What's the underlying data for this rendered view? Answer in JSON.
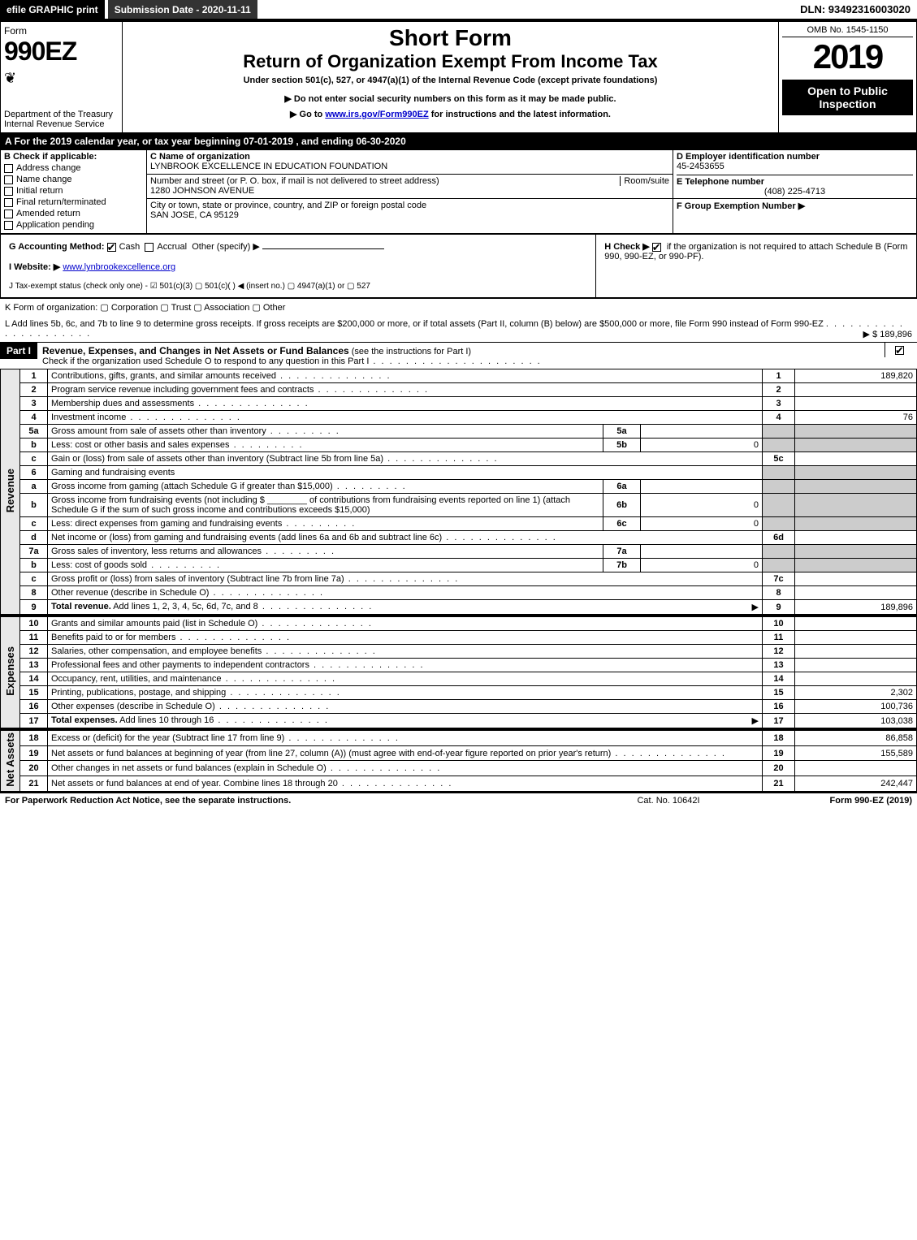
{
  "top": {
    "efile": "efile GRAPHIC print",
    "submission": "Submission Date - 2020-11-11",
    "dln": "DLN: 93492316003020"
  },
  "header": {
    "form_word": "Form",
    "form_num": "990EZ",
    "dept": "Department of the Treasury",
    "irs": "Internal Revenue Service",
    "omb": "OMB No. 1545-1150",
    "year": "2019",
    "open": "Open to Public Inspection",
    "title_short": "Short Form",
    "title_return": "Return of Organization Exempt From Income Tax",
    "subtitle": "Under section 501(c), 527, or 4947(a)(1) of the Internal Revenue Code (except private foundations)",
    "warn": "▶ Do not enter social security numbers on this form as it may be made public.",
    "goto_prefix": "▶ Go to ",
    "goto_link": "www.irs.gov/Form990EZ",
    "goto_suffix": " for instructions and the latest information."
  },
  "section_a": "A For the 2019 calendar year, or tax year beginning 07-01-2019 , and ending 06-30-2020",
  "boxB": {
    "label": "B Check if applicable:",
    "opts": [
      "Address change",
      "Name change",
      "Initial return",
      "Final return/terminated",
      "Amended return",
      "Application pending"
    ]
  },
  "boxC": {
    "name_label": "C Name of organization",
    "name": "LYNBROOK EXCELLENCE IN EDUCATION FOUNDATION",
    "street_label": "Number and street (or P. O. box, if mail is not delivered to street address)",
    "room_label": "Room/suite",
    "street": "1280 JOHNSON AVENUE",
    "city_label": "City or town, state or province, country, and ZIP or foreign postal code",
    "city": "SAN JOSE, CA  95129"
  },
  "boxD": {
    "label": "D Employer identification number",
    "value": "45-2453655"
  },
  "boxE": {
    "label": "E Telephone number",
    "value": "(408) 225-4713"
  },
  "boxF": {
    "label": "F Group Exemption Number ▶"
  },
  "lineG": {
    "label": "G Accounting Method:",
    "cash": "Cash",
    "accrual": "Accrual",
    "other": "Other (specify) ▶"
  },
  "lineH": {
    "text": "H Check ▶ ",
    "text2": " if the organization is not required to attach Schedule B (Form 990, 990-EZ, or 990-PF)."
  },
  "lineI": {
    "label": "I Website: ▶",
    "value": "www.lynbrookexcellence.org"
  },
  "lineJ": "J Tax-exempt status (check only one) - ☑ 501(c)(3)  ▢ 501(c)(  ) ◀ (insert no.)  ▢ 4947(a)(1) or  ▢ 527",
  "lineK": "K Form of organization:   ▢ Corporation   ▢ Trust   ▢ Association   ▢ Other",
  "lineL": {
    "text": "L Add lines 5b, 6c, and 7b to line 9 to determine gross receipts. If gross receipts are $200,000 or more, or if total assets (Part II, column (B) below) are $500,000 or more, file Form 990 instead of Form 990-EZ",
    "value": "▶ $ 189,896"
  },
  "parts": {
    "p1": {
      "num": "Part I",
      "title": "Revenue, Expenses, and Changes in Net Assets or Fund Balances",
      "note": "(see the instructions for Part I)",
      "check": "Check if the organization used Schedule O to respond to any question in this Part I"
    }
  },
  "sections": {
    "revenue": "Revenue",
    "expenses": "Expenses",
    "netassets": "Net Assets"
  },
  "rows": [
    {
      "n": "1",
      "d": "Contributions, gifts, grants, and similar amounts received",
      "rn": "1",
      "rv": "189,820"
    },
    {
      "n": "2",
      "d": "Program service revenue including government fees and contracts",
      "rn": "2",
      "rv": ""
    },
    {
      "n": "3",
      "d": "Membership dues and assessments",
      "rn": "3",
      "rv": ""
    },
    {
      "n": "4",
      "d": "Investment income",
      "rn": "4",
      "rv": "76"
    },
    {
      "n": "5a",
      "d": "Gross amount from sale of assets other than inventory",
      "sc": "5a",
      "sv": "",
      "shade": true
    },
    {
      "n": "b",
      "d": "Less: cost or other basis and sales expenses",
      "sc": "5b",
      "sv": "0",
      "shade": true
    },
    {
      "n": "c",
      "d": "Gain or (loss) from sale of assets other than inventory (Subtract line 5b from line 5a)",
      "rn": "5c",
      "rv": ""
    },
    {
      "n": "6",
      "d": "Gaming and fundraising events",
      "shade": true,
      "nobox": true
    },
    {
      "n": "a",
      "d": "Gross income from gaming (attach Schedule G if greater than $15,000)",
      "sc": "6a",
      "sv": "",
      "shade": true
    },
    {
      "n": "b",
      "d": "Gross income from fundraising events (not including $ ________ of contributions from fundraising events reported on line 1) (attach Schedule G if the sum of such gross income and contributions exceeds $15,000)",
      "sc": "6b",
      "sv": "0",
      "shade": true,
      "multi": true
    },
    {
      "n": "c",
      "d": "Less: direct expenses from gaming and fundraising events",
      "sc": "6c",
      "sv": "0",
      "shade": true
    },
    {
      "n": "d",
      "d": "Net income or (loss) from gaming and fundraising events (add lines 6a and 6b and subtract line 6c)",
      "rn": "6d",
      "rv": ""
    },
    {
      "n": "7a",
      "d": "Gross sales of inventory, less returns and allowances",
      "sc": "7a",
      "sv": "",
      "shade": true
    },
    {
      "n": "b",
      "d": "Less: cost of goods sold",
      "sc": "7b",
      "sv": "0",
      "shade": true
    },
    {
      "n": "c",
      "d": "Gross profit or (loss) from sales of inventory (Subtract line 7b from line 7a)",
      "rn": "7c",
      "rv": ""
    },
    {
      "n": "8",
      "d": "Other revenue (describe in Schedule O)",
      "rn": "8",
      "rv": ""
    },
    {
      "n": "9",
      "d": "Total revenue. Add lines 1, 2, 3, 4, 5c, 6d, 7c, and 8",
      "rn": "9",
      "rv": "189,896",
      "bold": true,
      "arrow": true
    }
  ],
  "exp_rows": [
    {
      "n": "10",
      "d": "Grants and similar amounts paid (list in Schedule O)",
      "rn": "10",
      "rv": ""
    },
    {
      "n": "11",
      "d": "Benefits paid to or for members",
      "rn": "11",
      "rv": ""
    },
    {
      "n": "12",
      "d": "Salaries, other compensation, and employee benefits",
      "rn": "12",
      "rv": ""
    },
    {
      "n": "13",
      "d": "Professional fees and other payments to independent contractors",
      "rn": "13",
      "rv": ""
    },
    {
      "n": "14",
      "d": "Occupancy, rent, utilities, and maintenance",
      "rn": "14",
      "rv": ""
    },
    {
      "n": "15",
      "d": "Printing, publications, postage, and shipping",
      "rn": "15",
      "rv": "2,302"
    },
    {
      "n": "16",
      "d": "Other expenses (describe in Schedule O)",
      "rn": "16",
      "rv": "100,736"
    },
    {
      "n": "17",
      "d": "Total expenses. Add lines 10 through 16",
      "rn": "17",
      "rv": "103,038",
      "bold": true,
      "arrow": true
    }
  ],
  "net_rows": [
    {
      "n": "18",
      "d": "Excess or (deficit) for the year (Subtract line 17 from line 9)",
      "rn": "18",
      "rv": "86,858"
    },
    {
      "n": "19",
      "d": "Net assets or fund balances at beginning of year (from line 27, column (A)) (must agree with end-of-year figure reported on prior year's return)",
      "rn": "19",
      "rv": "155,589",
      "multi": true
    },
    {
      "n": "20",
      "d": "Other changes in net assets or fund balances (explain in Schedule O)",
      "rn": "20",
      "rv": ""
    },
    {
      "n": "21",
      "d": "Net assets or fund balances at end of year. Combine lines 18 through 20",
      "rn": "21",
      "rv": "242,447"
    }
  ],
  "footer": {
    "left": "For Paperwork Reduction Act Notice, see the separate instructions.",
    "mid": "Cat. No. 10642I",
    "right": "Form 990-EZ (2019)"
  }
}
